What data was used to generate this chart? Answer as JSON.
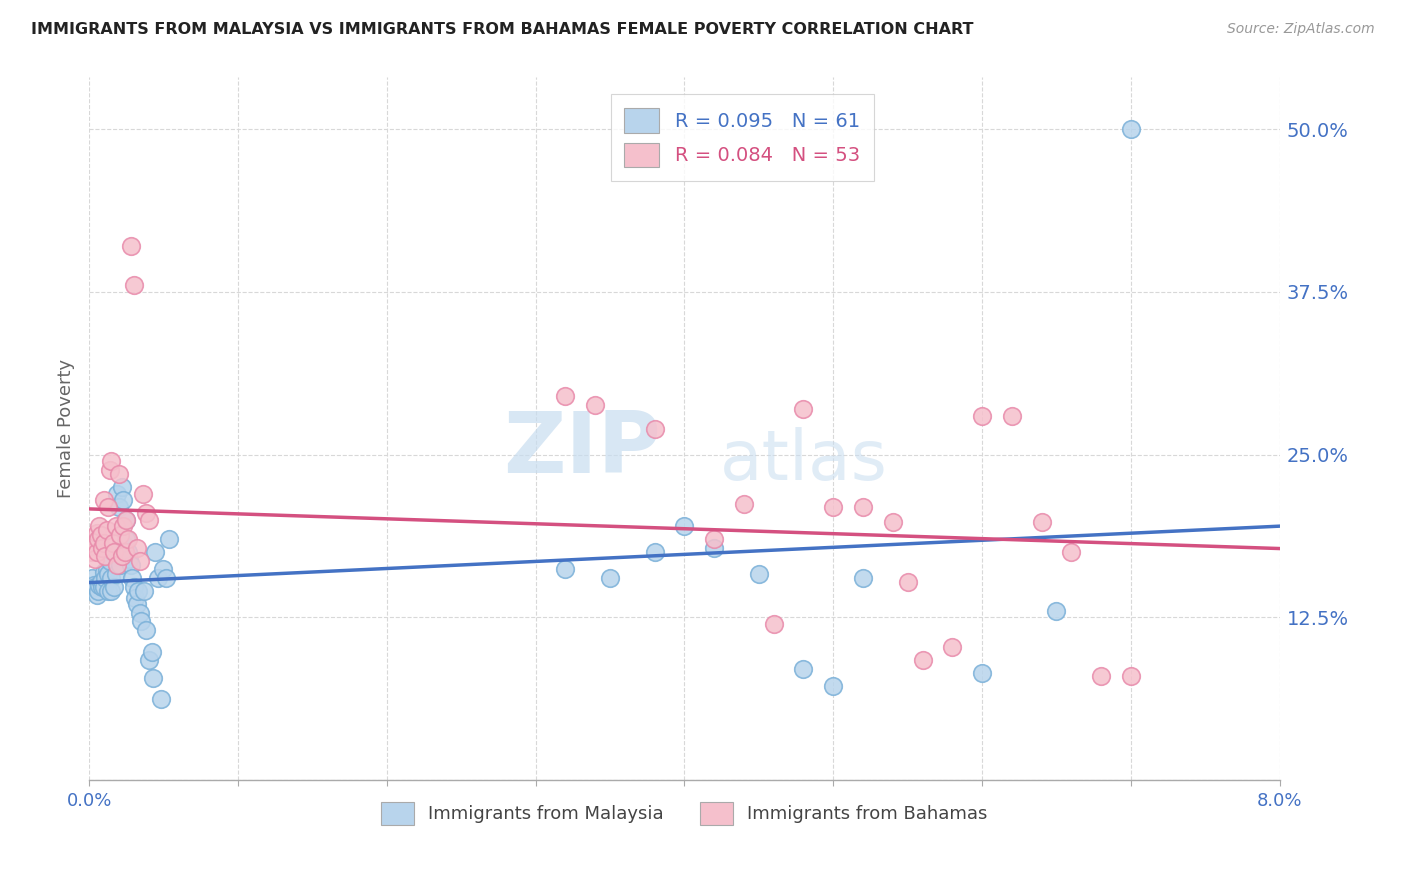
{
  "title": "IMMIGRANTS FROM MALAYSIA VS IMMIGRANTS FROM BAHAMAS FEMALE POVERTY CORRELATION CHART",
  "source": "Source: ZipAtlas.com",
  "ylabel": "Female Poverty",
  "yticks": [
    0.0,
    0.125,
    0.25,
    0.375,
    0.5
  ],
  "ytick_labels": [
    "",
    "12.5%",
    "25.0%",
    "37.5%",
    "50.0%"
  ],
  "xlim": [
    0.0,
    0.08
  ],
  "ylim": [
    0.0,
    0.54
  ],
  "malaysia_color": "#b8d4ec",
  "malaysia_edge": "#7ab0d8",
  "bahamas_color": "#f5c0cc",
  "bahamas_edge": "#e88aaa",
  "malaysia_line_color": "#4472c4",
  "bahamas_line_color": "#d45080",
  "malaysia_R": 0.095,
  "malaysia_N": 61,
  "bahamas_R": 0.084,
  "bahamas_N": 53,
  "malaysia_x": [
    0.0002,
    0.0003,
    0.0004,
    0.0005,
    0.0006,
    0.0007,
    0.0008,
    0.0009,
    0.001,
    0.001,
    0.0011,
    0.0012,
    0.0013,
    0.0013,
    0.0014,
    0.0015,
    0.0015,
    0.0016,
    0.0017,
    0.0018,
    0.0019,
    0.002,
    0.0021,
    0.0022,
    0.0023,
    0.0024,
    0.0025,
    0.0025,
    0.0026,
    0.0027,
    0.0028,
    0.0029,
    0.003,
    0.0031,
    0.0032,
    0.0033,
    0.0034,
    0.0035,
    0.0037,
    0.0038,
    0.004,
    0.0042,
    0.0043,
    0.0044,
    0.0046,
    0.0048,
    0.005,
    0.0052,
    0.0054,
    0.032,
    0.035,
    0.038,
    0.04,
    0.042,
    0.045,
    0.048,
    0.05,
    0.052,
    0.06,
    0.065,
    0.07
  ],
  "malaysia_y": [
    0.155,
    0.15,
    0.148,
    0.142,
    0.145,
    0.15,
    0.152,
    0.148,
    0.16,
    0.148,
    0.155,
    0.162,
    0.158,
    0.145,
    0.168,
    0.155,
    0.145,
    0.175,
    0.148,
    0.158,
    0.22,
    0.21,
    0.165,
    0.225,
    0.215,
    0.18,
    0.2,
    0.185,
    0.175,
    0.17,
    0.165,
    0.155,
    0.148,
    0.14,
    0.135,
    0.145,
    0.128,
    0.122,
    0.145,
    0.115,
    0.092,
    0.098,
    0.078,
    0.175,
    0.155,
    0.062,
    0.162,
    0.155,
    0.185,
    0.162,
    0.155,
    0.175,
    0.195,
    0.178,
    0.158,
    0.085,
    0.072,
    0.155,
    0.082,
    0.13,
    0.5
  ],
  "bahamas_x": [
    0.0002,
    0.0003,
    0.0004,
    0.0005,
    0.0005,
    0.0006,
    0.0007,
    0.0008,
    0.0009,
    0.001,
    0.001,
    0.0011,
    0.0012,
    0.0013,
    0.0014,
    0.0015,
    0.0016,
    0.0017,
    0.0018,
    0.0019,
    0.002,
    0.0021,
    0.0022,
    0.0023,
    0.0024,
    0.0025,
    0.0026,
    0.0028,
    0.003,
    0.0032,
    0.0034,
    0.0036,
    0.0038,
    0.004,
    0.032,
    0.034,
    0.038,
    0.042,
    0.044,
    0.046,
    0.048,
    0.05,
    0.052,
    0.054,
    0.056,
    0.058,
    0.06,
    0.062,
    0.064,
    0.066,
    0.068,
    0.07,
    0.055
  ],
  "bahamas_y": [
    0.175,
    0.18,
    0.17,
    0.19,
    0.175,
    0.185,
    0.195,
    0.188,
    0.178,
    0.182,
    0.215,
    0.172,
    0.192,
    0.21,
    0.238,
    0.245,
    0.182,
    0.175,
    0.195,
    0.165,
    0.235,
    0.188,
    0.172,
    0.195,
    0.175,
    0.2,
    0.185,
    0.41,
    0.38,
    0.178,
    0.168,
    0.22,
    0.205,
    0.2,
    0.295,
    0.288,
    0.27,
    0.185,
    0.212,
    0.12,
    0.285,
    0.21,
    0.21,
    0.198,
    0.092,
    0.102,
    0.28,
    0.28,
    0.198,
    0.175,
    0.08,
    0.08,
    0.152
  ],
  "watermark_zip": "ZIP",
  "watermark_atlas": "atlas",
  "background_color": "#ffffff",
  "grid_color": "#d8d8d8"
}
